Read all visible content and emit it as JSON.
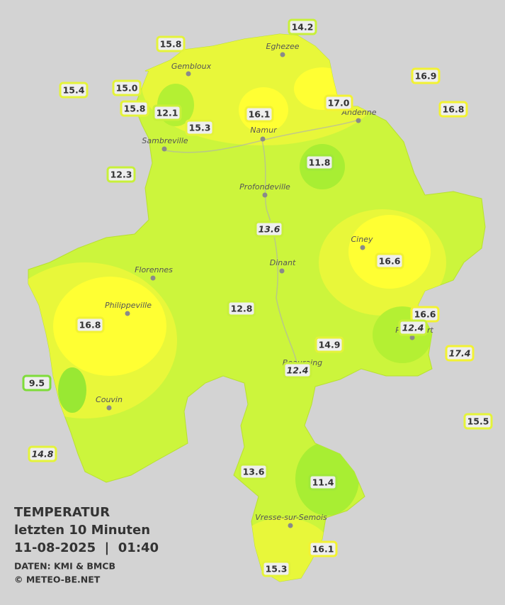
{
  "map": {
    "cities": [
      "Eghezee",
      "Gembloux",
      "Andenne",
      "Namur",
      "Sambreville",
      "Profondeville",
      "Ciney",
      "Dinant",
      "Florennes",
      "Philippeville",
      "Rochefort",
      "Beauraing",
      "Couvin",
      "Vresse-sur-Semois"
    ],
    "stations": [
      {
        "label": "15.8"
      },
      {
        "label": "14.2"
      },
      {
        "label": "15.4"
      },
      {
        "label": "15.0"
      },
      {
        "label": "16.9"
      },
      {
        "label": "16.8"
      },
      {
        "label": "15.8"
      },
      {
        "label": "12.1"
      },
      {
        "label": "15.3"
      },
      {
        "label": "16.1"
      },
      {
        "label": "17.0"
      },
      {
        "label": "11.8"
      },
      {
        "label": "12.3"
      },
      {
        "label": "13.6",
        "italic": true
      },
      {
        "label": "16.6"
      },
      {
        "label": "12.8"
      },
      {
        "label": "16.8"
      },
      {
        "label": "16.6"
      },
      {
        "label": "12.4",
        "italic": true
      },
      {
        "label": "14.9"
      },
      {
        "label": "17.4",
        "italic": true
      },
      {
        "label": "12.4",
        "italic": true
      },
      {
        "label": "9.5"
      },
      {
        "label": "15.5"
      },
      {
        "label": "14.8",
        "italic": true
      },
      {
        "label": "13.6"
      },
      {
        "label": "11.4"
      },
      {
        "label": "16.1"
      },
      {
        "label": "15.3"
      }
    ],
    "legend": {
      "title": "TEMPERATUR",
      "period": "letzten 10 Minuten",
      "datetime": "11-08-2025  |  01:40",
      "source": "DATEN: KMI & BMCB",
      "copyright": "© METEO-BE.NET"
    }
  }
}
